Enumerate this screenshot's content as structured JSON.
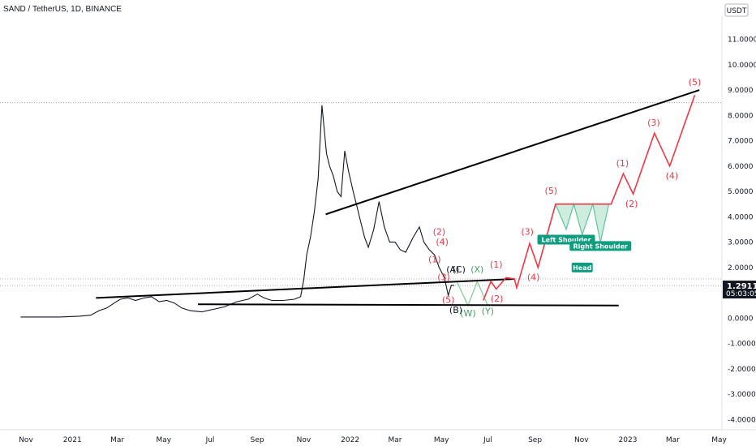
{
  "header": {
    "title": "SAND / TetherUS, 1D, BINANCE"
  },
  "price_scale": {
    "currency": "USDT",
    "last_price": "1.2911",
    "countdown": "05:03:05"
  },
  "chart_data": {
    "type": "line",
    "title": "SAND / TetherUS, 1D, BINANCE",
    "ylim": [
      -4.5,
      11.3
    ],
    "y_ticks": [
      "11.0000",
      "10.0000",
      "9.0000",
      "8.0000",
      "7.0000",
      "6.0000",
      "5.0000",
      "4.0000",
      "3.0000",
      "2.0000",
      "1.0000",
      "0.0000",
      "-1.0000",
      "-2.0000",
      "-3.0000",
      "-4.0000"
    ],
    "x_ticks": [
      {
        "label": "Nov",
        "date": "2020-11-01"
      },
      {
        "label": "2021",
        "date": "2021-01-01"
      },
      {
        "label": "Mar",
        "date": "2021-03-01"
      },
      {
        "label": "May",
        "date": "2021-05-01"
      },
      {
        "label": "Jul",
        "date": "2021-07-01"
      },
      {
        "label": "Sep",
        "date": "2021-09-01"
      },
      {
        "label": "Nov",
        "date": "2021-11-01"
      },
      {
        "label": "2022",
        "date": "2022-01-01"
      },
      {
        "label": "Mar",
        "date": "2022-03-01"
      },
      {
        "label": "May",
        "date": "2022-05-01"
      },
      {
        "label": "Jul",
        "date": "2022-07-01"
      },
      {
        "label": "Sep",
        "date": "2022-09-01"
      },
      {
        "label": "Nov",
        "date": "2022-11-01"
      },
      {
        "label": "2023",
        "date": "2023-01-01"
      },
      {
        "label": "Mar",
        "date": "2023-03-01"
      },
      {
        "label": "May",
        "date": "2023-05-01"
      }
    ],
    "price_series": [
      [
        "2020-10-25",
        0.05
      ],
      [
        "2020-12-15",
        0.05
      ],
      [
        "2021-01-10",
        0.08
      ],
      [
        "2021-01-25",
        0.12
      ],
      [
        "2021-02-05",
        0.3
      ],
      [
        "2021-02-15",
        0.4
      ],
      [
        "2021-02-25",
        0.6
      ],
      [
        "2021-03-05",
        0.75
      ],
      [
        "2021-03-15",
        0.8
      ],
      [
        "2021-03-25",
        0.7
      ],
      [
        "2021-04-05",
        0.8
      ],
      [
        "2021-04-15",
        0.85
      ],
      [
        "2021-04-25",
        0.65
      ],
      [
        "2021-05-05",
        0.7
      ],
      [
        "2021-05-15",
        0.6
      ],
      [
        "2021-05-25",
        0.4
      ],
      [
        "2021-06-05",
        0.3
      ],
      [
        "2021-06-20",
        0.25
      ],
      [
        "2021-07-05",
        0.35
      ],
      [
        "2021-07-20",
        0.45
      ],
      [
        "2021-08-05",
        0.65
      ],
      [
        "2021-08-20",
        0.75
      ],
      [
        "2021-09-01",
        0.95
      ],
      [
        "2021-09-10",
        0.8
      ],
      [
        "2021-09-20",
        0.7
      ],
      [
        "2021-10-05",
        0.7
      ],
      [
        "2021-10-20",
        0.75
      ],
      [
        "2021-10-28",
        0.85
      ],
      [
        "2021-11-01",
        1.5
      ],
      [
        "2021-11-05",
        2.5
      ],
      [
        "2021-11-10",
        3.2
      ],
      [
        "2021-11-15",
        4.2
      ],
      [
        "2021-11-20",
        5.5
      ],
      [
        "2021-11-25",
        8.4
      ],
      [
        "2021-12-01",
        6.5
      ],
      [
        "2021-12-05",
        6.0
      ],
      [
        "2021-12-10",
        5.6
      ],
      [
        "2021-12-15",
        5.0
      ],
      [
        "2021-12-20",
        4.8
      ],
      [
        "2021-12-25",
        6.6
      ],
      [
        "2021-12-30",
        5.8
      ],
      [
        "2022-01-05",
        5.0
      ],
      [
        "2022-01-10",
        4.4
      ],
      [
        "2022-01-15",
        3.8
      ],
      [
        "2022-01-20",
        3.2
      ],
      [
        "2022-01-25",
        2.8
      ],
      [
        "2022-02-01",
        3.5
      ],
      [
        "2022-02-08",
        4.6
      ],
      [
        "2022-02-15",
        3.6
      ],
      [
        "2022-02-22",
        3.0
      ],
      [
        "2022-03-01",
        3.0
      ],
      [
        "2022-03-08",
        2.7
      ],
      [
        "2022-03-15",
        2.6
      ],
      [
        "2022-03-25",
        3.2
      ],
      [
        "2022-04-02",
        3.6
      ],
      [
        "2022-04-08",
        3.0
      ],
      [
        "2022-04-15",
        2.7
      ],
      [
        "2022-04-22",
        2.5
      ],
      [
        "2022-04-28",
        2.0
      ],
      [
        "2022-05-05",
        1.6
      ],
      [
        "2022-05-10",
        0.9
      ],
      [
        "2022-05-14",
        1.3
      ],
      [
        "2022-05-18",
        1.29
      ]
    ],
    "trendlines": [
      {
        "color": "#000000",
        "points": [
          [
            "2021-02-01",
            0.8
          ],
          [
            "2022-08-05",
            1.55
          ]
        ]
      },
      {
        "color": "#000000",
        "points": [
          [
            "2021-06-15",
            0.55
          ],
          [
            "2022-12-20",
            0.5
          ]
        ]
      },
      {
        "color": "#000000",
        "points": [
          [
            "2021-11-30",
            4.1
          ],
          [
            "2023-04-05",
            9.0
          ]
        ]
      }
    ],
    "projection_red": [
      [
        "2022-06-25",
        0.7
      ],
      [
        "2022-07-05",
        1.45
      ],
      [
        "2022-07-12",
        1.15
      ],
      [
        "2022-07-25",
        1.6
      ],
      [
        "2022-08-05",
        1.55
      ],
      [
        "2022-08-08",
        1.2
      ],
      [
        "2022-08-25",
        2.95
      ],
      [
        "2022-09-05",
        2.0
      ],
      [
        "2022-09-28",
        4.5
      ],
      [
        "2022-10-15",
        4.5
      ],
      [
        "2022-11-10",
        4.5
      ],
      [
        "2022-12-10",
        4.5
      ],
      [
        "2022-12-26",
        5.7
      ],
      [
        "2023-01-08",
        4.9
      ],
      [
        "2023-02-05",
        7.3
      ],
      [
        "2023-02-25",
        6.0
      ],
      [
        "2023-03-30",
        8.8
      ]
    ],
    "projection_green": [
      [
        "2022-05-22",
        1.4
      ],
      [
        "2022-06-05",
        0.5
      ],
      [
        "2022-06-17",
        1.45
      ],
      [
        "2022-07-01",
        0.5
      ]
    ],
    "projection_head_shoulders": [
      [
        "2022-09-28",
        4.5
      ],
      [
        "2022-10-12",
        3.5
      ],
      [
        "2022-10-22",
        4.5
      ],
      [
        "2022-11-02",
        3.3
      ],
      [
        "2022-11-16",
        4.5
      ],
      [
        "2022-11-26",
        3.0
      ],
      [
        "2022-12-07",
        4.5
      ]
    ],
    "wave_labels": [
      {
        "text": "(1)",
        "color": "red",
        "date": "2022-04-22",
        "y": 2.2
      },
      {
        "text": "(2)",
        "color": "red",
        "date": "2022-04-28",
        "y": 3.3
      },
      {
        "text": "(4)",
        "color": "red",
        "date": "2022-05-02",
        "y": 2.9
      },
      {
        "text": "(3)",
        "color": "red",
        "date": "2022-05-04",
        "y": 1.5
      },
      {
        "text": "(5)",
        "color": "red",
        "date": "2022-05-10",
        "y": 0.6
      },
      {
        "text": "(A)",
        "color": "black",
        "date": "2022-05-16",
        "y": 1.8
      },
      {
        "text": "(C)",
        "color": "black",
        "date": "2022-05-24",
        "y": 1.8
      },
      {
        "text": "(B)",
        "color": "black",
        "date": "2022-05-20",
        "y": 0.2
      },
      {
        "text": "(X)",
        "color": "green",
        "date": "2022-06-17",
        "y": 1.8
      },
      {
        "text": "(W)",
        "color": "green",
        "date": "2022-06-05",
        "y": 0.08
      },
      {
        "text": "(Y)",
        "color": "green",
        "date": "2022-07-01",
        "y": 0.15
      },
      {
        "text": "(1)",
        "color": "red",
        "date": "2022-07-12",
        "y": 2.0
      },
      {
        "text": "(2)",
        "color": "red",
        "date": "2022-07-13",
        "y": 0.65
      },
      {
        "text": "(3)",
        "color": "red",
        "date": "2022-08-22",
        "y": 3.3
      },
      {
        "text": "(4)",
        "color": "red",
        "date": "2022-08-30",
        "y": 1.5
      },
      {
        "text": "(5)",
        "color": "red",
        "date": "2022-09-22",
        "y": 4.9
      },
      {
        "text": "(1)",
        "color": "red",
        "date": "2022-12-25",
        "y": 6.0
      },
      {
        "text": "(2)",
        "color": "red",
        "date": "2023-01-06",
        "y": 4.4
      },
      {
        "text": "(3)",
        "color": "red",
        "date": "2023-02-04",
        "y": 7.6
      },
      {
        "text": "(4)",
        "color": "red",
        "date": "2023-02-28",
        "y": 5.5
      },
      {
        "text": "(5)",
        "color": "red",
        "date": "2023-03-30",
        "y": 9.2
      }
    ],
    "annotations": [
      {
        "text": "Left Shoulder",
        "date": "2022-10-12",
        "y": 3.1
      },
      {
        "text": "Head",
        "date": "2022-11-02",
        "y": 2.0
      },
      {
        "text": "Right Shoulder",
        "date": "2022-11-26",
        "y": 2.85
      }
    ],
    "reference_lines": [
      {
        "y": 8.5,
        "style": "dotted",
        "color": "#9598a1"
      },
      {
        "y": 1.55,
        "style": "dotted",
        "color": "#9598a1"
      },
      {
        "y": 1.29,
        "style": "dotted",
        "color": "#9598a1"
      }
    ],
    "colors": {
      "price": "#131722",
      "projection": "#f23645",
      "correction": "#4c9a6a",
      "hs_fill": "#a5dfc4"
    }
  }
}
